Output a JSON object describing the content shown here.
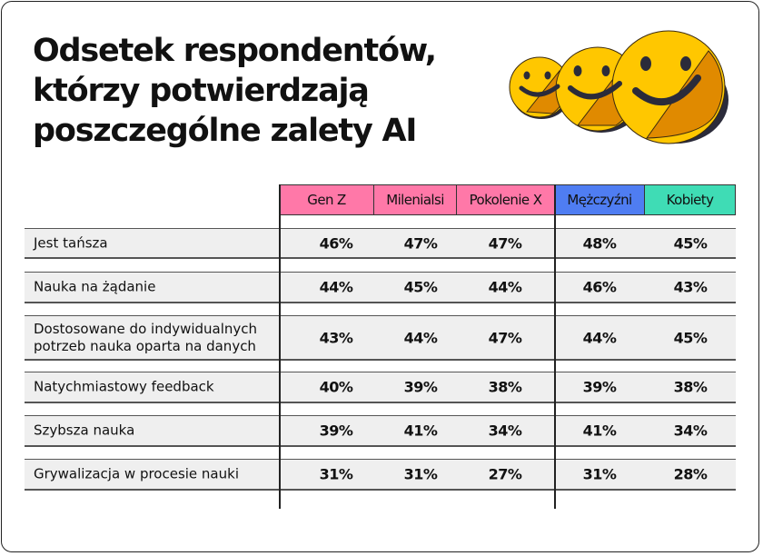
{
  "title": [
    "Odsetek respondentów,",
    "którzy potwierdzają",
    "poszczególne zalety AI"
  ],
  "colors": {
    "pink": "#ff78a8",
    "blue": "#4f7df2",
    "teal": "#3fdcb5",
    "row": "#efefef",
    "smiley": "#ffc700",
    "smiley_shade": "#e08a00"
  },
  "icon": "smiley-faces-icon",
  "columns": [
    "Gen Z",
    "Milenialsi",
    "Pokolenie X",
    "Mężczyźni",
    "Kobiety"
  ],
  "rows": [
    {
      "label": "Jest tańsza",
      "values": [
        "46%",
        "47%",
        "47%",
        "48%",
        "45%"
      ]
    },
    {
      "label": "Nauka na żądanie",
      "values": [
        "44%",
        "45%",
        "44%",
        "46%",
        "43%"
      ]
    },
    {
      "label": "Dostosowane do indywidualnych potrzeb nauka oparta na danych",
      "values": [
        "43%",
        "44%",
        "47%",
        "44%",
        "45%"
      ]
    },
    {
      "label": "Natychmiastowy feedback",
      "values": [
        "40%",
        "39%",
        "38%",
        "39%",
        "38%"
      ]
    },
    {
      "label": "Szybsza nauka",
      "values": [
        "39%",
        "41%",
        "34%",
        "41%",
        "34%"
      ]
    },
    {
      "label": "Grywalizacja w procesie nauki",
      "values": [
        "31%",
        "31%",
        "27%",
        "31%",
        "28%"
      ]
    }
  ]
}
